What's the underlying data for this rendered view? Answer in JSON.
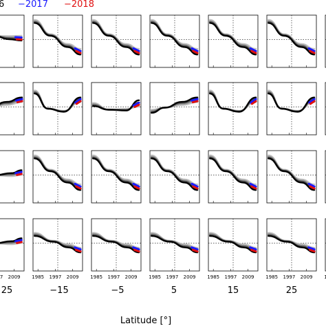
{
  "chart_data": {
    "type": "line",
    "legend": [
      {
        "label": "6",
        "color": "#000000"
      },
      {
        "label": "−2017",
        "color": "#1a1aff"
      },
      {
        "label": "−2018",
        "color": "#e01010"
      }
    ],
    "legend_position": "top",
    "xlabel": "Latitude [°]",
    "time_ticks": [
      "1985",
      "1997",
      "2009"
    ],
    "latitude_labels": [
      "25",
      "−15",
      "−5",
      "5",
      "15",
      "25"
    ],
    "columns": 7,
    "rows": 4,
    "grid": "dotted zero lines",
    "colors": {
      "early_series": "#000000",
      "mid_series": "#555555",
      "late_series": "#9a9a9a",
      "latest_series": "#c4c4c4",
      "year_2017": "#1a1aff",
      "year_2018": "#e01010"
    },
    "panel_shapes": [
      [
        "flatdown",
        "decline",
        "decline",
        "decline",
        "decline",
        "decline",
        "decline"
      ],
      [
        "rise",
        "ushape",
        "flatdip",
        "rise",
        "ushape",
        "ushape",
        "ushape"
      ],
      [
        "flat",
        "decline",
        "decline",
        "decline",
        "decline",
        "decline",
        "decline"
      ],
      [
        "flat",
        "mild",
        "mild",
        "mild",
        "mild",
        "mild",
        "mild"
      ]
    ]
  }
}
